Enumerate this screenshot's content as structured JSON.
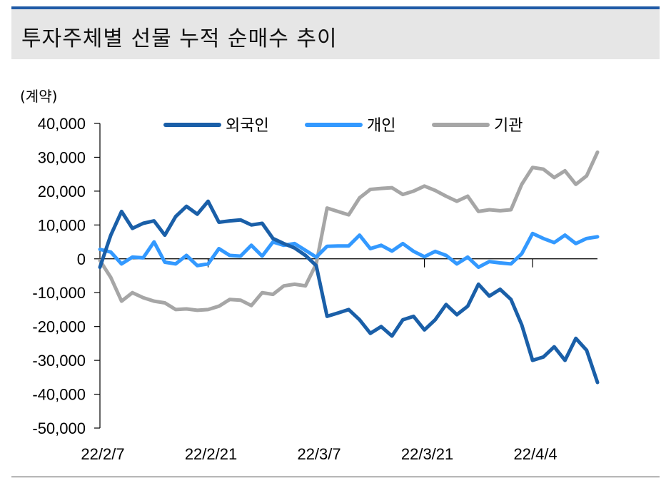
{
  "header": {
    "title": "투자주체별 선물 누적 순매수 추이"
  },
  "chart_data": {
    "type": "line",
    "title": "투자주체별 선물 누적 순매수 추이",
    "unit_label": "(계약)",
    "ylim": [
      -50000,
      40000
    ],
    "yticks": [
      40000,
      30000,
      20000,
      10000,
      0,
      -10000,
      -20000,
      -30000,
      -40000,
      -50000
    ],
    "ytick_labels": [
      "40,000",
      "30,000",
      "20,000",
      "10,000",
      "0",
      "-10,000",
      "-20,000",
      "-30,000",
      "-40,000",
      "-50,000"
    ],
    "xtick_labels": [
      "22/2/7",
      "22/2/21",
      "22/3/7",
      "22/3/21",
      "22/4/4"
    ],
    "xtick_index": [
      0,
      10,
      20,
      30,
      40
    ],
    "legend_position": "top",
    "series": [
      {
        "name": "외국인",
        "color": "#1a5fa8",
        "values": [
          -2500,
          7000,
          14000,
          9000,
          10500,
          11200,
          7000,
          12500,
          15500,
          13200,
          17000,
          10800,
          11200,
          11500,
          10000,
          10500,
          6000,
          4500,
          3200,
          1000,
          -2000,
          -17000,
          -16000,
          -15000,
          -18000,
          -22000,
          -20000,
          -22800,
          -18000,
          -17000,
          -21000,
          -18000,
          -13500,
          -16500,
          -14000,
          -7500,
          -11000,
          -9000,
          -12000,
          -19500,
          -30000,
          -29000,
          -26000,
          -30000,
          -23500,
          -27000,
          -36500
        ]
      },
      {
        "name": "개인",
        "color": "#3399ff",
        "values": [
          2800,
          2000,
          -1500,
          500,
          300,
          5000,
          -1000,
          -1500,
          1000,
          -2000,
          -1500,
          3000,
          1000,
          800,
          4000,
          800,
          5000,
          4000,
          4500,
          2500,
          500,
          3700,
          3800,
          3800,
          7000,
          3000,
          4000,
          2300,
          4500,
          2200,
          600,
          2200,
          1000,
          -1500,
          500,
          -2500,
          -800,
          -1200,
          -1500,
          1500,
          7500,
          6000,
          4800,
          7000,
          4500,
          6000,
          6500
        ]
      },
      {
        "name": "기관",
        "color": "#a6a6a6",
        "values": [
          -500,
          -5500,
          -12500,
          -10000,
          -11500,
          -12500,
          -13000,
          -15000,
          -14800,
          -15200,
          -15000,
          -14000,
          -12000,
          -12200,
          -13800,
          -10000,
          -10500,
          -8000,
          -7500,
          -8000,
          -1500,
          15000,
          14000,
          13000,
          18000,
          20500,
          20800,
          21000,
          19000,
          20000,
          21500,
          20200,
          18500,
          17000,
          18500,
          14000,
          14500,
          14200,
          14500,
          22000,
          27000,
          26500,
          24000,
          26000,
          22000,
          24500,
          31500
        ]
      }
    ]
  }
}
